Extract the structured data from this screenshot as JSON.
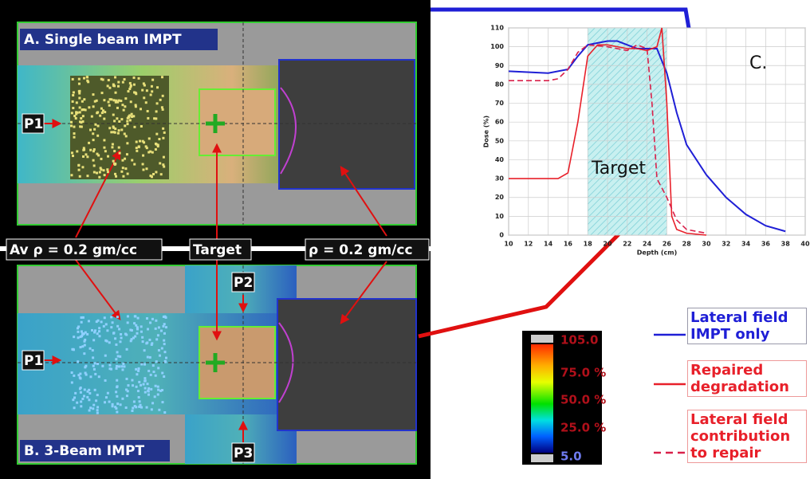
{
  "panels": {
    "a_title": "A. Single beam IMPT",
    "b_title": "B. 3-Beam IMPT",
    "p1_a": "P1",
    "p1_b": "P1",
    "p2": "P2",
    "p3": "P3",
    "density_left": "Av ρ = 0.2 gm/cc",
    "target": "Target",
    "density_right": "ρ = 0.2 gm/cc"
  },
  "colorbar": {
    "labels": [
      "105.0",
      "75.0 %",
      "50.0 %",
      "25.0 %",
      "5.0"
    ]
  },
  "chart_data": {
    "type": "line",
    "panel_label": "C.",
    "target_label": "Target",
    "xlabel": "Depth (cm)",
    "ylabel": "Dose (%)",
    "xlim": [
      10,
      40
    ],
    "ylim": [
      0,
      110
    ],
    "xticks": [
      10,
      12,
      14,
      16,
      18,
      20,
      22,
      24,
      26,
      28,
      30,
      32,
      34,
      36,
      38,
      40
    ],
    "yticks": [
      0,
      10,
      20,
      30,
      40,
      50,
      60,
      70,
      80,
      90,
      100,
      110
    ],
    "grid": true,
    "target_span": [
      18,
      26
    ],
    "series": [
      {
        "name": "Lateral field IMPT only",
        "color": "#1f1fd6",
        "style": "solid",
        "x": [
          10,
          14,
          16,
          17,
          18,
          19,
          20,
          21,
          22,
          23,
          24,
          25,
          26,
          27,
          28,
          30,
          32,
          34,
          36,
          38
        ],
        "values": [
          87,
          86,
          88,
          95,
          101,
          102,
          103,
          103,
          101,
          99,
          99,
          99,
          86,
          65,
          48,
          32,
          20,
          11,
          5,
          2
        ]
      },
      {
        "name": "Repaired degradation",
        "color": "#e8202a",
        "style": "solid",
        "x": [
          10,
          15,
          16,
          17,
          18,
          19,
          20,
          21,
          22,
          23,
          24,
          25,
          25.5,
          26,
          26.5,
          27,
          28,
          30
        ],
        "values": [
          30,
          30,
          33,
          60,
          95,
          101,
          101,
          100,
          99,
          99,
          98,
          100,
          110,
          70,
          10,
          3,
          1,
          0
        ]
      },
      {
        "name": "Lateral field contribution to repair",
        "color": "#d9204a",
        "style": "dashed",
        "x": [
          10,
          14,
          15,
          16,
          17,
          18,
          20,
          22,
          23,
          24,
          24.5,
          25,
          25.5,
          26,
          27,
          28,
          30
        ],
        "values": [
          82,
          82,
          83,
          88,
          97,
          101,
          100,
          98,
          101,
          99,
          70,
          30,
          25,
          20,
          8,
          3,
          1
        ]
      }
    ]
  }
}
